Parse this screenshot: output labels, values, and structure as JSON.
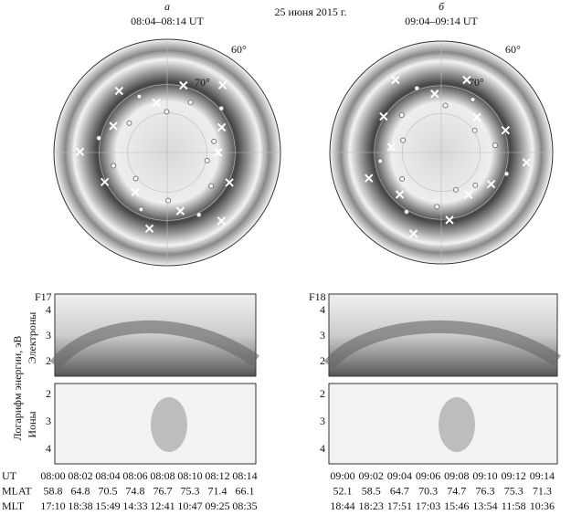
{
  "date": "25 июня 2015 г.",
  "y_label": "Логарифм энергии, эВ",
  "electrons": "Электроны",
  "ions": "Ионы",
  "row_labels": [
    "UT",
    "MLAT",
    "MLT"
  ],
  "panels": [
    {
      "letter": "а",
      "time": "08:04–08:14 UT",
      "lat_labels": [
        "60°",
        "70°"
      ],
      "satellite": "F17",
      "electron_ticks": [
        4,
        3,
        2
      ],
      "ion_ticks": [
        2,
        3,
        4
      ],
      "ut": [
        "08:00",
        "08:02",
        "08:04",
        "08:06",
        "08:08",
        "08:10",
        "08:12",
        "08:14"
      ],
      "mlat": [
        "58.8",
        "64.8",
        "70.5",
        "74.8",
        "76.7",
        "75.3",
        "71.4",
        "66.1"
      ],
      "mlt": [
        "17:10",
        "18:38",
        "15:49",
        "14:33",
        "12:41",
        "10:47",
        "09:25",
        "08:35"
      ]
    },
    {
      "letter": "б",
      "time": "09:04–09:14 UT",
      "lat_labels": [
        "60°",
        "70°"
      ],
      "satellite": "F18",
      "electron_ticks": [
        4,
        3,
        2
      ],
      "ion_ticks": [
        2,
        3,
        4
      ],
      "ut": [
        "09:00",
        "09:02",
        "09:04",
        "09:06",
        "09:08",
        "09:10",
        "09:12",
        "09:14"
      ],
      "mlat": [
        "52.1",
        "58.5",
        "64.7",
        "70.3",
        "74.7",
        "76.3",
        "75.3",
        "71.3"
      ],
      "mlt": [
        "18:44",
        "18:23",
        "17:51",
        "17:03",
        "15:46",
        "13:54",
        "11:58",
        "10:36"
      ]
    }
  ]
}
